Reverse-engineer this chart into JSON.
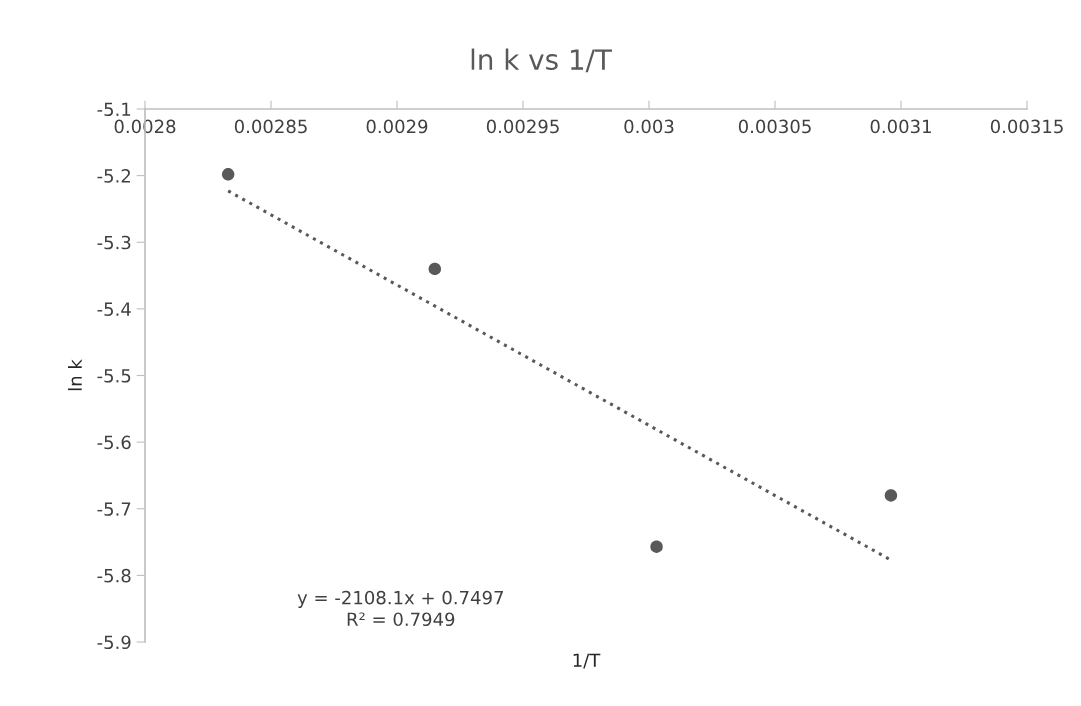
{
  "chart_data": {
    "type": "scatter",
    "title": "ln k vs 1/T",
    "xlabel": "1/T",
    "ylabel": "ln k",
    "series": [
      {
        "color": "#595959",
        "marker": "circle",
        "x": [
          0.002833,
          0.002915,
          0.003003,
          0.003096
        ],
        "values": [
          -5.198,
          -5.34,
          -5.757,
          -5.68
        ]
      },
      {
        "type": "line",
        "color": "#595959",
        "line_style": "dotted",
        "marker": "none",
        "x": [
          0.002833,
          0.003096
        ],
        "values": [
          -5.223,
          -5.777
        ]
      }
    ],
    "xlim": [
      0.0028,
      0.00315
    ],
    "xticks": [
      0.0028,
      0.00285,
      0.0029,
      0.00295,
      0.003,
      0.00305,
      0.0031,
      0.00315
    ],
    "ylim": [
      -5.9,
      -5.1
    ],
    "yticks": [
      -5.9,
      -5.8,
      -5.7,
      -5.6,
      -5.5,
      -5.4,
      -5.3,
      -5.2,
      -5.1
    ],
    "grid": false,
    "legend": false,
    "annotations": [
      "y = -2108.1x + 0.7497\nR² = 0.7949"
    ]
  }
}
